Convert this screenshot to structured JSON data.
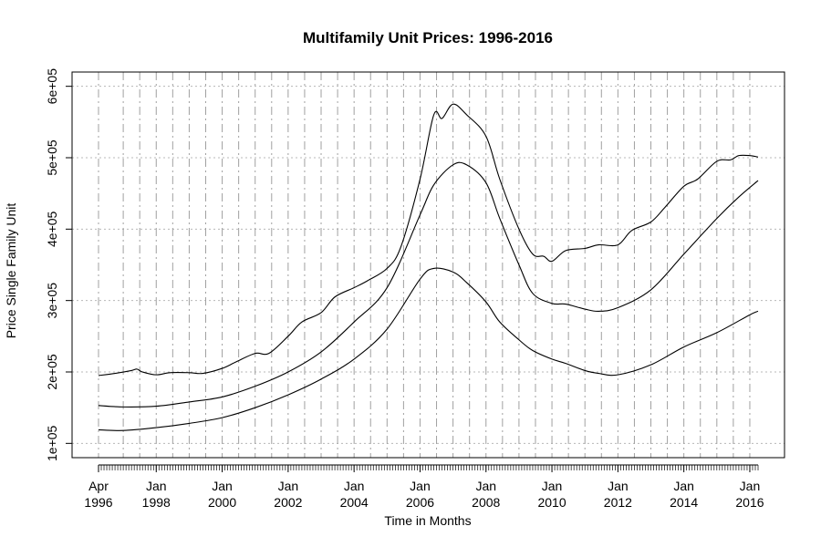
{
  "chart_data": {
    "type": "line",
    "title": "Multifamily Unit Prices: 1996-2016",
    "xlabel": "Time in Months",
    "ylabel": "Price Single Family Unit",
    "x_range": [
      "1996-04",
      "2016-04"
    ],
    "ylim": [
      80000,
      620000
    ],
    "grid": true,
    "y_ticks": [
      {
        "value": 100000,
        "label": "1e+05"
      },
      {
        "value": 200000,
        "label": "2e+05"
      },
      {
        "value": 300000,
        "label": "3e+05"
      },
      {
        "value": 400000,
        "label": "4e+05"
      },
      {
        "value": 500000,
        "label": "5e+05"
      },
      {
        "value": 600000,
        "label": "6e+05"
      }
    ],
    "x_ticks": [
      {
        "date": "1996-04",
        "line1": "Apr",
        "line2": "1996"
      },
      {
        "date": "1998-01",
        "line1": "Jan",
        "line2": "1998"
      },
      {
        "date": "2000-01",
        "line1": "Jan",
        "line2": "2000"
      },
      {
        "date": "2002-01",
        "line1": "Jan",
        "line2": "2002"
      },
      {
        "date": "2004-01",
        "line1": "Jan",
        "line2": "2004"
      },
      {
        "date": "2006-01",
        "line1": "Jan",
        "line2": "2006"
      },
      {
        "date": "2008-01",
        "line1": "Jan",
        "line2": "2008"
      },
      {
        "date": "2010-01",
        "line1": "Jan",
        "line2": "2010"
      },
      {
        "date": "2012-01",
        "line1": "Jan",
        "line2": "2012"
      },
      {
        "date": "2014-01",
        "line1": "Jan",
        "line2": "2014"
      },
      {
        "date": "2016-01",
        "line1": "Jan",
        "line2": "2016"
      }
    ],
    "series": [
      {
        "points": [
          [
            "1996-04",
            195000
          ],
          [
            "1996-10",
            198000
          ],
          [
            "1997-04",
            202000
          ],
          [
            "1997-06",
            204000
          ],
          [
            "1997-08",
            200000
          ],
          [
            "1998-01",
            196000
          ],
          [
            "1998-06",
            199000
          ],
          [
            "1999-01",
            199000
          ],
          [
            "1999-06",
            198000
          ],
          [
            "2000-01",
            205000
          ],
          [
            "2000-06",
            214000
          ],
          [
            "2001-01",
            226000
          ],
          [
            "2001-06",
            226000
          ],
          [
            "2002-01",
            250000
          ],
          [
            "2002-06",
            270000
          ],
          [
            "2003-01",
            283000
          ],
          [
            "2003-06",
            305000
          ],
          [
            "2004-01",
            318000
          ],
          [
            "2004-06",
            328000
          ],
          [
            "2005-01",
            345000
          ],
          [
            "2005-06",
            375000
          ],
          [
            "2006-01",
            470000
          ],
          [
            "2006-06",
            560000
          ],
          [
            "2006-09",
            555000
          ],
          [
            "2007-01",
            575000
          ],
          [
            "2007-06",
            560000
          ],
          [
            "2008-01",
            530000
          ],
          [
            "2008-06",
            470000
          ],
          [
            "2009-01",
            400000
          ],
          [
            "2009-06",
            365000
          ],
          [
            "2009-10",
            362000
          ],
          [
            "2010-01",
            355000
          ],
          [
            "2010-06",
            370000
          ],
          [
            "2011-01",
            373000
          ],
          [
            "2011-06",
            378000
          ],
          [
            "2012-01",
            378000
          ],
          [
            "2012-06",
            398000
          ],
          [
            "2013-01",
            410000
          ],
          [
            "2013-06",
            430000
          ],
          [
            "2014-01",
            460000
          ],
          [
            "2014-06",
            470000
          ],
          [
            "2015-01",
            495000
          ],
          [
            "2015-06",
            497000
          ],
          [
            "2015-09",
            503000
          ],
          [
            "2016-01",
            503000
          ],
          [
            "2016-04",
            501000
          ]
        ]
      },
      {
        "points": [
          [
            "1996-04",
            153000
          ],
          [
            "1997-01",
            151000
          ],
          [
            "1998-01",
            152000
          ],
          [
            "1999-01",
            158000
          ],
          [
            "2000-01",
            165000
          ],
          [
            "2001-01",
            180000
          ],
          [
            "2002-01",
            200000
          ],
          [
            "2003-01",
            228000
          ],
          [
            "2004-01",
            270000
          ],
          [
            "2005-01",
            318000
          ],
          [
            "2006-01",
            420000
          ],
          [
            "2006-06",
            462000
          ],
          [
            "2007-01",
            490000
          ],
          [
            "2007-06",
            490000
          ],
          [
            "2008-01",
            465000
          ],
          [
            "2008-06",
            415000
          ],
          [
            "2009-01",
            350000
          ],
          [
            "2009-06",
            310000
          ],
          [
            "2010-01",
            296000
          ],
          [
            "2010-06",
            295000
          ],
          [
            "2011-01",
            288000
          ],
          [
            "2011-06",
            285000
          ],
          [
            "2012-01",
            290000
          ],
          [
            "2013-01",
            315000
          ],
          [
            "2014-01",
            365000
          ],
          [
            "2015-01",
            415000
          ],
          [
            "2015-09",
            445000
          ],
          [
            "2016-04",
            468000
          ]
        ]
      },
      {
        "points": [
          [
            "1996-04",
            119000
          ],
          [
            "1997-01",
            118000
          ],
          [
            "1998-01",
            122000
          ],
          [
            "1999-01",
            128000
          ],
          [
            "2000-01",
            136000
          ],
          [
            "2001-01",
            150000
          ],
          [
            "2002-01",
            168000
          ],
          [
            "2003-01",
            190000
          ],
          [
            "2004-01",
            218000
          ],
          [
            "2005-01",
            260000
          ],
          [
            "2006-01",
            330000
          ],
          [
            "2006-06",
            345000
          ],
          [
            "2007-01",
            340000
          ],
          [
            "2007-06",
            325000
          ],
          [
            "2008-01",
            298000
          ],
          [
            "2008-06",
            270000
          ],
          [
            "2009-01",
            245000
          ],
          [
            "2009-06",
            230000
          ],
          [
            "2010-01",
            218000
          ],
          [
            "2010-06",
            212000
          ],
          [
            "2011-01",
            202000
          ],
          [
            "2011-06",
            198000
          ],
          [
            "2012-01",
            196000
          ],
          [
            "2013-01",
            210000
          ],
          [
            "2014-01",
            235000
          ],
          [
            "2015-01",
            255000
          ],
          [
            "2016-01",
            280000
          ],
          [
            "2016-04",
            285000
          ]
        ]
      }
    ]
  }
}
